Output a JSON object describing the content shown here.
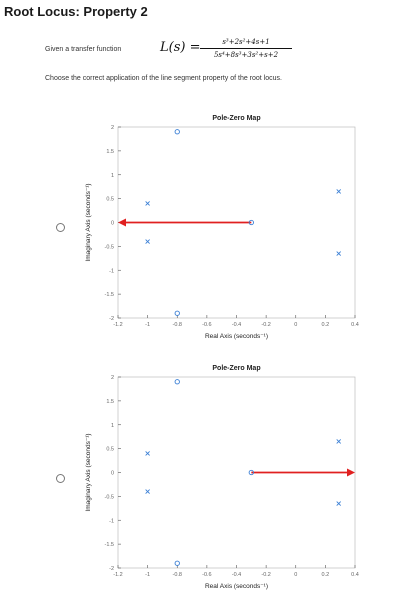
{
  "header": {
    "title": "Root Locus: Property 2"
  },
  "question": {
    "given_label": "Given a transfer function",
    "lhs": "L(s) =",
    "numerator": "s³+2s²+4s+1",
    "denominator": "5s⁴+8s³+3s²+s+2",
    "instruction": "Choose the correct application of the line segment property of the root locus."
  },
  "options": [
    {
      "chart_data": {
        "type": "scatter",
        "title": "Pole-Zero Map",
        "xlabel": "Real Axis (seconds⁻¹)",
        "ylabel": "Imaginary Axis (seconds⁻¹)",
        "xlim": [
          -1.2,
          0.4
        ],
        "ylim": [
          -2,
          2
        ],
        "xticks": [
          "-1.2",
          "-1",
          "-0.8",
          "-0.6",
          "-0.4",
          "-0.2",
          "0",
          "0.2",
          "0.4"
        ],
        "yticks": [
          "2",
          "1.5",
          "1",
          "0.5",
          "0",
          "-0.5",
          "-1",
          "-1.5",
          "-2"
        ],
        "series": [
          {
            "marker": "x",
            "points": [
              [
                -1.0,
                0.4
              ],
              [
                -1.0,
                -0.4
              ],
              [
                0.29,
                0.65
              ],
              [
                0.29,
                -0.65
              ]
            ]
          },
          {
            "marker": "o",
            "points": [
              [
                -0.8,
                1.9
              ],
              [
                -0.8,
                -1.9
              ],
              [
                -0.3,
                0
              ]
            ]
          }
        ],
        "arrow": {
          "from": [
            -0.3,
            0
          ],
          "to": [
            -1.2,
            0
          ]
        },
        "colors": {
          "marker": "#3a7fd5",
          "arrow": "#e02020",
          "axis": "#555555"
        },
        "grid": false
      }
    },
    {
      "chart_data": {
        "type": "scatter",
        "title": "Pole-Zero Map",
        "xlabel": "Real Axis (seconds⁻¹)",
        "ylabel": "Imaginary Axis (seconds⁻¹)",
        "xlim": [
          -1.2,
          0.4
        ],
        "ylim": [
          -2,
          2
        ],
        "xticks": [
          "-1.2",
          "-1",
          "-0.8",
          "-0.6",
          "-0.4",
          "-0.2",
          "0",
          "0.2",
          "0.4"
        ],
        "yticks": [
          "2",
          "1.5",
          "1",
          "0.5",
          "0",
          "-0.5",
          "-1",
          "-1.5",
          "-2"
        ],
        "series": [
          {
            "marker": "x",
            "points": [
              [
                -1.0,
                0.4
              ],
              [
                -1.0,
                -0.4
              ],
              [
                0.29,
                0.65
              ],
              [
                0.29,
                -0.65
              ]
            ]
          },
          {
            "marker": "o",
            "points": [
              [
                -0.8,
                1.9
              ],
              [
                -0.8,
                -1.9
              ],
              [
                -0.3,
                0
              ]
            ]
          }
        ],
        "arrow": {
          "from": [
            -0.3,
            0
          ],
          "to": [
            0.4,
            0
          ]
        },
        "colors": {
          "marker": "#3a7fd5",
          "arrow": "#e02020",
          "axis": "#555555"
        },
        "grid": false
      }
    }
  ]
}
